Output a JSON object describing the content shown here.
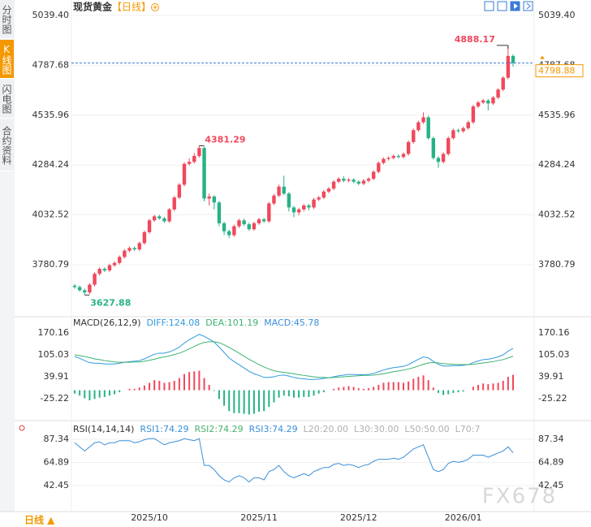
{
  "sidebar": {
    "tabs": [
      "分时图",
      "K线图",
      "闪电图",
      "合约资料"
    ]
  },
  "footer": {
    "period": "日线 ▲"
  },
  "watermark": "FX678",
  "chart_data": [
    {
      "type": "candlestick",
      "title": "现货黄金",
      "subtitle": "【日线】",
      "categories": [
        null,
        null,
        null,
        null,
        null,
        null,
        null,
        null,
        null,
        null,
        null,
        null,
        null,
        null,
        null,
        "2025/10",
        null,
        null,
        null,
        null,
        null,
        null,
        null,
        null,
        null,
        null,
        null,
        null,
        null,
        null,
        null,
        null,
        null,
        null,
        null,
        null,
        null,
        "2025/11",
        null,
        null,
        null,
        null,
        null,
        null,
        null,
        null,
        null,
        null,
        null,
        null,
        null,
        null,
        null,
        null,
        null,
        null,
        null,
        "2025/12",
        null,
        null,
        null,
        null,
        null,
        null,
        null,
        null,
        null,
        null,
        null,
        null,
        null,
        null,
        null,
        null,
        null,
        null,
        null,
        null,
        "2026/01",
        null,
        null,
        null,
        null,
        null,
        null,
        null,
        null,
        null,
        null
      ],
      "open": [
        3675,
        3668,
        3652,
        3641,
        3680,
        3735,
        3760,
        3752,
        3778,
        3790,
        3820,
        3852,
        3865,
        3858,
        3890,
        3945,
        4005,
        4025,
        4015,
        4000,
        4060,
        4120,
        4185,
        4290,
        4300,
        4330,
        4370,
        4115,
        4125,
        4095,
        3990,
        3950,
        3930,
        3975,
        4005,
        3985,
        3960,
        3990,
        4010,
        4000,
        4090,
        4130,
        4175,
        4140,
        4070,
        4045,
        4060,
        4080,
        4070,
        4110,
        4120,
        4150,
        4165,
        4200,
        4215,
        4205,
        4210,
        4200,
        4190,
        4205,
        4215,
        4250,
        4295,
        4315,
        4320,
        4330,
        4325,
        4340,
        4400,
        4460,
        4500,
        4525,
        4420,
        4320,
        4300,
        4340,
        4420,
        4460,
        4455,
        4470,
        4500,
        4580,
        4600,
        4610,
        4595,
        4625,
        4665,
        4725,
        4835
      ],
      "high": [
        3683,
        3676,
        3660,
        3688,
        3743,
        3768,
        3768,
        3786,
        3798,
        3828,
        3860,
        3873,
        3873,
        3898,
        3953,
        4013,
        4033,
        4033,
        4023,
        4068,
        4128,
        4193,
        4298,
        4318,
        4345,
        4381.29,
        4378,
        4140,
        4133,
        4103,
        3998,
        3958,
        3983,
        4013,
        4013,
        3993,
        3998,
        4018,
        4018,
        4098,
        4138,
        4185,
        4230,
        4148,
        4078,
        4068,
        4088,
        4088,
        4118,
        4128,
        4158,
        4173,
        4208,
        4223,
        4228,
        4218,
        4218,
        4208,
        4213,
        4223,
        4258,
        4303,
        4323,
        4328,
        4338,
        4338,
        4348,
        4408,
        4468,
        4508,
        4550,
        4533,
        4428,
        4328,
        4348,
        4428,
        4468,
        4468,
        4478,
        4508,
        4588,
        4608,
        4618,
        4618,
        4633,
        4673,
        4733,
        4888.17,
        4843
      ],
      "low": [
        3660,
        3644,
        3627.88,
        3633,
        3672,
        3727,
        3744,
        3744,
        3770,
        3782,
        3812,
        3844,
        3850,
        3850,
        3882,
        3937,
        3997,
        4007,
        3992,
        3992,
        4052,
        4112,
        4177,
        4282,
        4292,
        4322,
        4100,
        4080,
        4060,
        3975,
        3930,
        3915,
        3922,
        3967,
        3977,
        3952,
        3952,
        3982,
        3992,
        3992,
        4082,
        4122,
        4132,
        4050,
        4020,
        4030,
        4050,
        4055,
        4062,
        4102,
        4112,
        4142,
        4157,
        4192,
        4197,
        4197,
        4192,
        4182,
        4182,
        4197,
        4207,
        4242,
        4287,
        4307,
        4312,
        4317,
        4317,
        4332,
        4392,
        4452,
        4492,
        4412,
        4312,
        4270,
        4292,
        4332,
        4412,
        4447,
        4447,
        4462,
        4492,
        4572,
        4592,
        4560,
        4587,
        4617,
        4657,
        4717,
        4780
      ],
      "close": [
        3668,
        3652,
        3641,
        3680,
        3735,
        3760,
        3752,
        3778,
        3790,
        3820,
        3852,
        3865,
        3858,
        3890,
        3945,
        4005,
        4025,
        4015,
        4000,
        4060,
        4120,
        4185,
        4290,
        4300,
        4330,
        4370,
        4115,
        4125,
        4095,
        3990,
        3950,
        3930,
        3975,
        4005,
        3985,
        3960,
        3990,
        4010,
        4000,
        4090,
        4130,
        4175,
        4140,
        4070,
        4045,
        4060,
        4080,
        4070,
        4110,
        4120,
        4150,
        4165,
        4200,
        4215,
        4205,
        4210,
        4200,
        4190,
        4205,
        4215,
        4250,
        4295,
        4315,
        4320,
        4330,
        4325,
        4340,
        4400,
        4460,
        4500,
        4525,
        4420,
        4320,
        4300,
        4340,
        4420,
        4460,
        4455,
        4470,
        4500,
        4580,
        4600,
        4610,
        4595,
        4625,
        4665,
        4725,
        4835,
        4798.88
      ],
      "up_color": "#f0485c",
      "down_color": "#27b286",
      "price_line_color": "#3a7bd5",
      "price_label_color": "#f39800",
      "ylim": [
        3526.6,
        5039.4
      ],
      "yticks": [
        3780.79,
        4032.52,
        4284.24,
        4535.96,
        4787.68,
        {
          "value": 5039.4,
          "label": "5039.40"
        }
      ],
      "grid": true
    },
    {
      "type": "macd",
      "title": "MACD(26,12,9)",
      "series": [
        {
          "name": "DIFF:124.08",
          "color": "#2f9ae0",
          "values": [
            100,
            95,
            88,
            82,
            80,
            80,
            78,
            78,
            78,
            80,
            83,
            85,
            86,
            88,
            93,
            100,
            107,
            110,
            110,
            114,
            120,
            128,
            140,
            150,
            158,
            166,
            160,
            152,
            143,
            128,
            112,
            96,
            85,
            76,
            66,
            56,
            49,
            44,
            38,
            38,
            40,
            44,
            45,
            42,
            38,
            35,
            34,
            32,
            32,
            33,
            35,
            37,
            40,
            43,
            45,
            47,
            47,
            46,
            46,
            47,
            50,
            55,
            60,
            64,
            67,
            69,
            71,
            76,
            84,
            92,
            99,
            96,
            86,
            77,
            72,
            72,
            73,
            73,
            74,
            76,
            82,
            87,
            91,
            92,
            95,
            99,
            105,
            116,
            124.08
          ]
        },
        {
          "name": "DEA:101.19",
          "color": "#3cb371",
          "values": [
            105,
            103,
            100,
            97,
            93,
            91,
            88,
            86,
            84,
            83,
            83,
            83,
            84,
            84,
            86,
            89,
            92,
            96,
            99,
            102,
            106,
            110,
            116,
            123,
            130,
            137,
            142,
            144,
            144,
            141,
            135,
            127,
            119,
            110,
            101,
            92,
            84,
            76,
            69,
            63,
            58,
            55,
            53,
            51,
            49,
            46,
            44,
            42,
            40,
            38,
            38,
            37,
            38,
            39,
            40,
            41,
            42,
            43,
            44,
            44,
            45,
            47,
            49,
            52,
            55,
            57,
            60,
            63,
            67,
            72,
            77,
            81,
            82,
            81,
            79,
            78,
            77,
            76,
            76,
            76,
            77,
            79,
            81,
            83,
            85,
            88,
            91,
            96,
            101.19
          ]
        },
        {
          "name": "MACD:45.78",
          "color": "#3a8fd8",
          "kind": "histogram",
          "values": [
            -10,
            -16,
            -24,
            -30,
            -26,
            -22,
            -20,
            -16,
            -12,
            -6,
            0,
            4,
            4,
            8,
            14,
            22,
            30,
            28,
            22,
            24,
            28,
            36,
            48,
            54,
            56,
            58,
            36,
            16,
            -2,
            -26,
            -46,
            -62,
            -68,
            -68,
            -70,
            -72,
            -70,
            -64,
            -62,
            -50,
            -36,
            -22,
            -16,
            -18,
            -22,
            -22,
            -20,
            -20,
            -16,
            -10,
            -6,
            0,
            4,
            8,
            10,
            12,
            10,
            6,
            4,
            6,
            10,
            16,
            22,
            24,
            24,
            24,
            22,
            26,
            34,
            40,
            44,
            30,
            8,
            -8,
            -14,
            -12,
            -8,
            -6,
            -4,
            0,
            10,
            16,
            20,
            18,
            20,
            22,
            28,
            40,
            45.78
          ]
        }
      ],
      "up_color": "#f0485c",
      "down_color": "#27b286",
      "ylim": [
        -90.3,
        199.1
      ],
      "yticks": [
        170.16,
        105.03,
        39.91,
        -25.22
      ],
      "grid": false
    },
    {
      "type": "rsi",
      "title": "RSI(14,14,14)",
      "series": [
        {
          "name": "RSI1:74.29",
          "color": "#3a8fd8",
          "values": [
            84,
            80,
            76,
            80,
            84,
            85,
            82,
            84,
            84,
            86,
            86,
            86,
            84,
            85,
            87,
            88,
            88,
            85,
            82,
            84,
            85,
            86,
            88,
            87,
            86,
            88,
            62,
            62,
            58,
            52,
            48,
            46,
            50,
            52,
            50,
            46,
            50,
            50,
            48,
            56,
            58,
            62,
            56,
            52,
            50,
            52,
            54,
            52,
            56,
            58,
            60,
            60,
            63,
            64,
            62,
            63,
            62,
            60,
            62,
            63,
            66,
            68,
            68,
            68,
            69,
            68,
            70,
            74,
            78,
            80,
            82,
            70,
            58,
            56,
            58,
            64,
            66,
            65,
            66,
            68,
            72,
            72,
            72,
            70,
            72,
            74,
            76,
            80,
            74.29
          ]
        }
      ],
      "legend_extra": [
        {
          "label": "RSI2:74.29",
          "color": "#49b26c"
        },
        {
          "label": "RSI3:74.29",
          "color": "#3a8fd8"
        },
        {
          "label": "L20:20.00",
          "color": "#b0b0b0"
        },
        {
          "label": "L30:30.00",
          "color": "#b0b0b0"
        },
        {
          "label": "L50:50.00",
          "color": "#b0b0b0"
        },
        {
          "label": "L70:7",
          "color": "#b0b0b0"
        }
      ],
      "ylim": [
        18.8,
        97.6
      ],
      "yticks": [
        87.34,
        64.89,
        42.45
      ],
      "grid": true
    }
  ]
}
